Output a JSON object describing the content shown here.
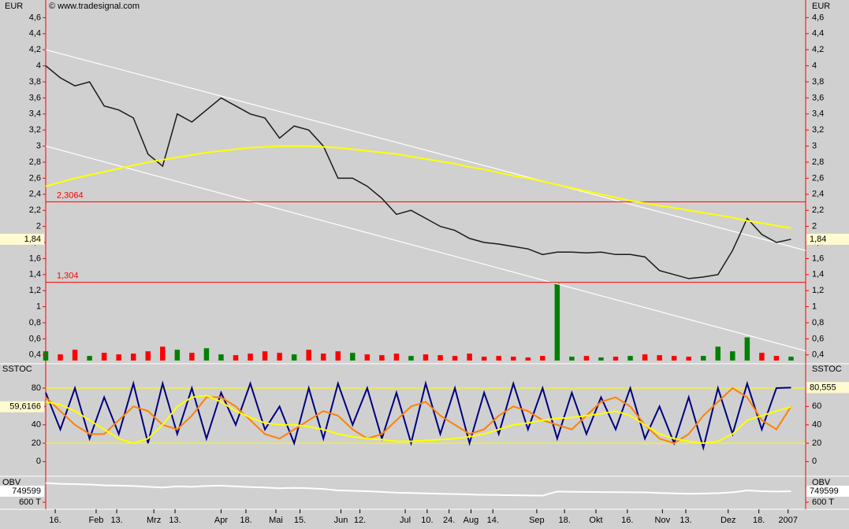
{
  "chart_data": [
    {
      "type": "line",
      "currency": "EUR",
      "source": "© www.tradesignal.com",
      "x": [
        0,
        1,
        2,
        3,
        4,
        5,
        6,
        7,
        8,
        9,
        10,
        11,
        12,
        13,
        14,
        15,
        16,
        17,
        18,
        19,
        20,
        21,
        22,
        23,
        24,
        25,
        26,
        27,
        28,
        29,
        30,
        31,
        32,
        33,
        34,
        35,
        36,
        37,
        38,
        39,
        40,
        41,
        42,
        43,
        44,
        45,
        46,
        47,
        48,
        49,
        50,
        51
      ],
      "xlim": [
        0,
        52
      ],
      "xticks": [
        {
          "value": 0.65,
          "label": "16."
        },
        {
          "value": 3.45,
          "label": "Feb"
        },
        {
          "value": 4.86,
          "label": "13."
        },
        {
          "value": 7.4,
          "label": "Mrz"
        },
        {
          "value": 8.85,
          "label": "13."
        },
        {
          "value": 12.0,
          "label": "Apr"
        },
        {
          "value": 13.7,
          "label": "18."
        },
        {
          "value": 15.75,
          "label": "Mai"
        },
        {
          "value": 17.4,
          "label": "15."
        },
        {
          "value": 20.2,
          "label": "Jun"
        },
        {
          "value": 21.5,
          "label": "12."
        },
        {
          "value": 24.6,
          "label": "Jul"
        },
        {
          "value": 26.1,
          "label": "10."
        },
        {
          "value": 27.6,
          "label": "24."
        },
        {
          "value": 29.1,
          "label": "Aug"
        },
        {
          "value": 30.6,
          "label": "14."
        },
        {
          "value": 33.6,
          "label": "Sep"
        },
        {
          "value": 35.5,
          "label": "18."
        },
        {
          "value": 37.65,
          "label": "Okt"
        },
        {
          "value": 39.8,
          "label": "16."
        },
        {
          "value": 42.2,
          "label": "Nov"
        },
        {
          "value": 43.8,
          "label": "13."
        },
        {
          "value": 46.7,
          "label": "Dez"
        },
        {
          "value": 48.8,
          "label": "18."
        },
        {
          "value": 50.8,
          "label": "2007"
        }
      ],
      "ylim": [
        0.31,
        4.79
      ],
      "yticks": [
        {
          "value": 0.4,
          "label": "0,4"
        },
        {
          "value": 0.6,
          "label": "0,6"
        },
        {
          "value": 0.8,
          "label": "0,8"
        },
        {
          "value": 1,
          "label": "1"
        },
        {
          "value": 1.2,
          "label": "1,2"
        },
        {
          "value": 1.4,
          "label": "1,4"
        },
        {
          "value": 1.6,
          "label": "1,6"
        },
        {
          "value": 1.8,
          "label": "1,8"
        },
        {
          "value": 2,
          "label": "2"
        },
        {
          "value": 2.2,
          "label": "2,2"
        },
        {
          "value": 2.4,
          "label": "2,4"
        },
        {
          "value": 2.6,
          "label": "2,6"
        },
        {
          "value": 2.8,
          "label": "2,8"
        },
        {
          "value": 3,
          "label": "3"
        },
        {
          "value": 3.2,
          "label": "3,2"
        },
        {
          "value": 3.4,
          "label": "3,4"
        },
        {
          "value": 3.6,
          "label": "3,6"
        },
        {
          "value": 3.8,
          "label": "3,8"
        },
        {
          "value": 4,
          "label": "4"
        },
        {
          "value": 4.2,
          "label": "4,2"
        },
        {
          "value": 4.4,
          "label": "4,4"
        },
        {
          "value": 4.6,
          "label": "4,6"
        }
      ],
      "series": [
        {
          "color": "#1a1a1a",
          "values": [
            4.0,
            3.85,
            3.75,
            3.8,
            3.5,
            3.45,
            3.35,
            2.9,
            2.75,
            3.4,
            3.3,
            3.45,
            3.6,
            3.5,
            3.4,
            3.35,
            3.1,
            3.25,
            3.2,
            3.0,
            2.6,
            2.6,
            2.5,
            2.35,
            2.15,
            2.2,
            2.1,
            2.0,
            1.95,
            1.85,
            1.8,
            1.78,
            1.75,
            1.72,
            1.65,
            1.68,
            1.68,
            1.67,
            1.68,
            1.65,
            1.65,
            1.62,
            1.45,
            1.4,
            1.35,
            1.37,
            1.4,
            1.7,
            2.1,
            1.9,
            1.8,
            1.84
          ],
          "value_labels": [
            null,
            null,
            null,
            null,
            null,
            null,
            null,
            null,
            null,
            null,
            null,
            null,
            null,
            null,
            null,
            null,
            null,
            null,
            null,
            null,
            null,
            null,
            null,
            null,
            null,
            null,
            null,
            null,
            null,
            null,
            null,
            null,
            null,
            null,
            null,
            null,
            null,
            null,
            null,
            null,
            null,
            null,
            null,
            null,
            null,
            null,
            null,
            null,
            null,
            null,
            null,
            "1,84"
          ]
        },
        {
          "color": "#ffff00",
          "values": [
            2.5,
            2.55,
            2.6,
            2.64,
            2.68,
            2.72,
            2.76,
            2.8,
            2.83,
            2.86,
            2.89,
            2.92,
            2.94,
            2.96,
            2.98,
            2.99,
            3.0,
            3.0,
            3.0,
            2.99,
            2.98,
            2.96,
            2.94,
            2.92,
            2.9,
            2.87,
            2.84,
            2.81,
            2.78,
            2.74,
            2.71,
            2.67,
            2.63,
            2.6,
            2.56,
            2.52,
            2.48,
            2.44,
            2.4,
            2.36,
            2.32,
            2.29,
            2.26,
            2.23,
            2.2,
            2.17,
            2.14,
            2.11,
            2.07,
            2.04,
            2.01,
            1.98
          ]
        }
      ],
      "hlines": [
        {
          "value": 2.3064,
          "label": "2,3064"
        },
        {
          "value": 1.304,
          "label": "1,304"
        }
      ],
      "hline_color": "#ff0000",
      "trendlines": [
        {
          "x": [
            0,
            52
          ],
          "values": [
            4.2,
            1.7
          ]
        },
        {
          "x": [
            0,
            52
          ],
          "values": [
            3.0,
            0.45
          ]
        }
      ],
      "trendline_color": "#ffffff"
    },
    {
      "type": "bar",
      "ylim": [
        0,
        100
      ],
      "up_color": "#008000",
      "down_color": "#ff0000",
      "values": [
        12,
        8,
        14,
        6,
        10,
        8,
        9,
        12,
        18,
        14,
        10,
        16,
        8,
        7,
        9,
        12,
        10,
        8,
        14,
        9,
        12,
        10,
        8,
        7,
        9,
        6,
        8,
        7,
        6,
        9,
        5,
        6,
        5,
        4,
        6,
        100,
        5,
        6,
        4,
        5,
        6,
        8,
        7,
        6,
        5,
        6,
        18,
        12,
        30,
        10,
        6,
        5
      ]
    },
    {
      "type": "line",
      "title": "SSTOC",
      "ylim": [
        -16,
        104
      ],
      "yticks": [
        0,
        20,
        40,
        60,
        80
      ],
      "levels": [
        80,
        20
      ],
      "level_color": "#ffff00",
      "series": [
        {
          "color": "#000080",
          "values": [
            75,
            35,
            80,
            25,
            70,
            30,
            85,
            20,
            85,
            30,
            80,
            25,
            75,
            40,
            85,
            35,
            60,
            20,
            80,
            25,
            85,
            40,
            80,
            25,
            75,
            20,
            85,
            30,
            80,
            20,
            75,
            30,
            85,
            35,
            80,
            25,
            75,
            30,
            70,
            35,
            80,
            25,
            60,
            20,
            70,
            15,
            80,
            30,
            85,
            35,
            80,
            80.555
          ],
          "value_labels": [
            null,
            null,
            null,
            null,
            null,
            null,
            null,
            null,
            null,
            null,
            null,
            null,
            null,
            null,
            null,
            null,
            null,
            null,
            null,
            null,
            null,
            null,
            null,
            null,
            null,
            null,
            null,
            null,
            null,
            null,
            null,
            null,
            null,
            null,
            null,
            null,
            null,
            null,
            null,
            null,
            null,
            null,
            null,
            null,
            null,
            null,
            null,
            null,
            null,
            null,
            null,
            "80,555"
          ],
          "label_side": "right"
        },
        {
          "color": "#ff8000",
          "values": [
            70,
            55,
            40,
            30,
            30,
            45,
            60,
            55,
            40,
            35,
            50,
            70,
            70,
            60,
            45,
            30,
            25,
            35,
            45,
            55,
            50,
            35,
            25,
            30,
            45,
            60,
            65,
            50,
            40,
            30,
            35,
            50,
            60,
            55,
            45,
            40,
            35,
            50,
            65,
            70,
            60,
            40,
            25,
            20,
            30,
            50,
            65,
            80,
            70,
            45,
            35,
            60
          ]
        },
        {
          "color": "#ffff00",
          "values": [
            65,
            62,
            55,
            45,
            35,
            25,
            20,
            25,
            40,
            60,
            70,
            72,
            65,
            55,
            48,
            42,
            40,
            40,
            38,
            35,
            30,
            27,
            25,
            24,
            22,
            22,
            23,
            24,
            25,
            27,
            30,
            35,
            40,
            42,
            45,
            47,
            48,
            50,
            52,
            55,
            50,
            40,
            30,
            25,
            22,
            20,
            22,
            30,
            45,
            50,
            55,
            59.6166
          ],
          "value_labels": [
            null,
            null,
            null,
            null,
            null,
            null,
            null,
            null,
            null,
            null,
            null,
            null,
            null,
            null,
            null,
            null,
            null,
            null,
            null,
            null,
            null,
            null,
            null,
            null,
            null,
            null,
            null,
            null,
            null,
            null,
            null,
            null,
            null,
            null,
            null,
            null,
            null,
            null,
            null,
            null,
            null,
            null,
            null,
            null,
            null,
            null,
            null,
            null,
            null,
            null,
            null,
            "59,6166"
          ],
          "label_side": "left"
        }
      ]
    },
    {
      "type": "line",
      "title": "OBV",
      "ylim": [
        525000,
        931000
      ],
      "yticks": [
        {
          "value": 600000,
          "label": "600 T"
        }
      ],
      "series": [
        {
          "color": "#ffffff",
          "values": [
            860000,
            850000,
            845000,
            840000,
            830000,
            825000,
            820000,
            810000,
            800000,
            815000,
            810000,
            820000,
            825000,
            815000,
            805000,
            800000,
            790000,
            795000,
            790000,
            780000,
            760000,
            755000,
            750000,
            740000,
            730000,
            725000,
            720000,
            715000,
            710000,
            705000,
            700000,
            698000,
            695000,
            692000,
            690000,
            745000,
            742000,
            740000,
            738000,
            736000,
            735000,
            733000,
            725000,
            720000,
            715000,
            718000,
            722000,
            735000,
            760000,
            750000,
            745000,
            749599
          ]
        }
      ]
    }
  ]
}
